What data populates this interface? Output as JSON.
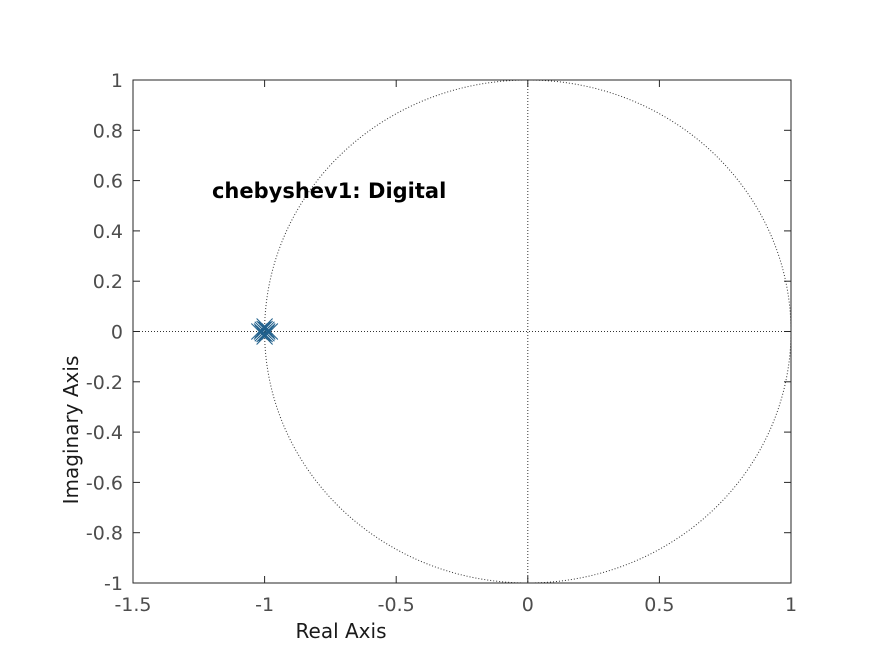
{
  "chart_data": {
    "type": "scatter",
    "title": "",
    "xlabel": "Real Axis",
    "ylabel": "Imaginary Axis",
    "xlim": [
      -1.5,
      1
    ],
    "ylim": [
      -1,
      1
    ],
    "xticks": [
      -1.5,
      -1,
      -0.5,
      0,
      0.5,
      1
    ],
    "yticks": [
      -1,
      -0.8,
      -0.6,
      -0.4,
      -0.2,
      0,
      0.2,
      0.4,
      0.6,
      0.8,
      1
    ],
    "xtick_labels": [
      "-1.5",
      "-1",
      "-0.5",
      "0",
      "0.5",
      "1"
    ],
    "ytick_labels": [
      "-1",
      "-0.8",
      "-0.6",
      "-0.4",
      "-0.2",
      "0",
      "0.2",
      "0.4",
      "0.6",
      "0.8",
      "1"
    ],
    "annotation": "chebyshev1: Digital",
    "annotation_at": [
      -1.2,
      0.53
    ],
    "grid": false,
    "unit_circle": true,
    "marker_color": "#1f5f8b",
    "series": [
      {
        "marker": "x",
        "points": [
          [
            -1.01,
            0.0
          ],
          [
            -1.0,
            0.01
          ],
          [
            -0.99,
            0.0
          ],
          [
            -1.0,
            -0.01
          ],
          [
            -1.007,
            0.007
          ],
          [
            -0.993,
            0.007
          ],
          [
            -0.993,
            -0.007
          ],
          [
            -1.007,
            -0.007
          ],
          [
            -1.02,
            0.0
          ],
          [
            -0.98,
            0.0
          ],
          [
            -1.0,
            0.02
          ],
          [
            -1.0,
            -0.02
          ]
        ]
      }
    ]
  }
}
